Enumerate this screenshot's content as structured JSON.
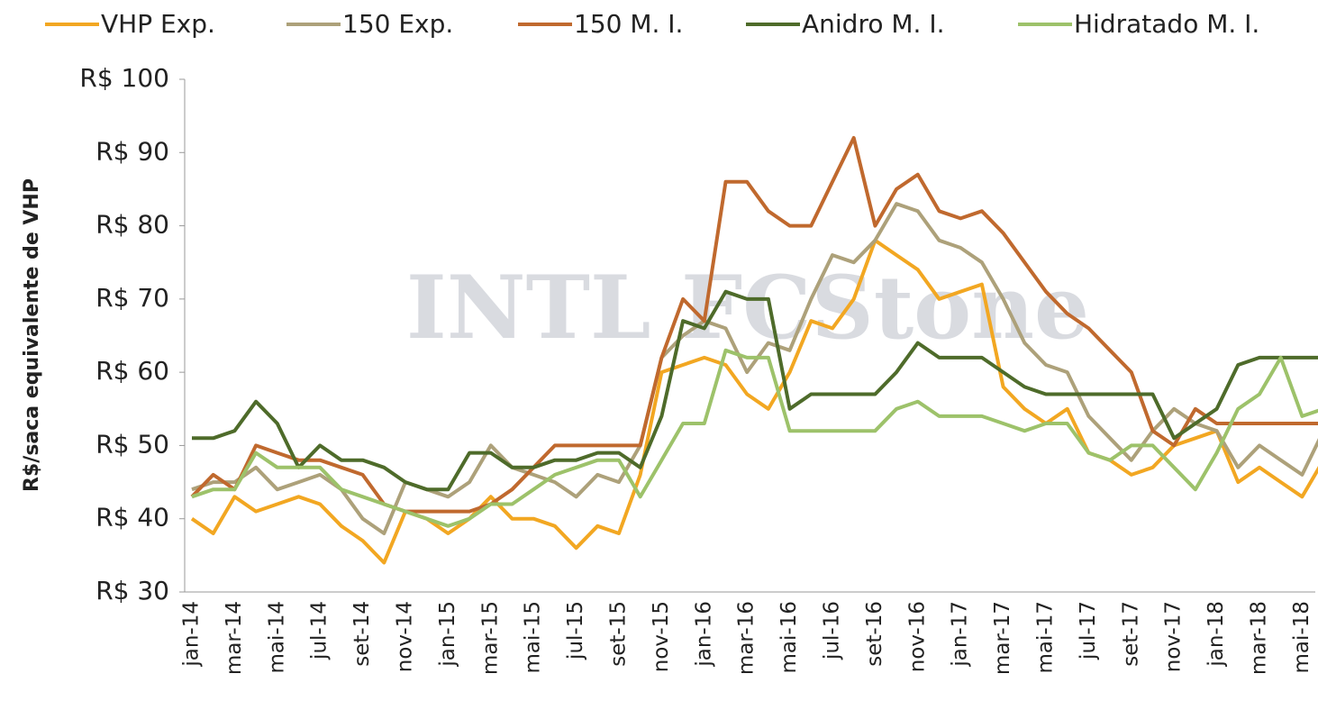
{
  "chart_data": {
    "type": "line",
    "watermark": "INTL FCStone",
    "y_label": "R$/saca equivalente de VHP",
    "categories": [
      "jan-14",
      null,
      "mar-14",
      null,
      "mai-14",
      null,
      "jul-14",
      null,
      "set-14",
      null,
      "nov-14",
      null,
      "jan-15",
      null,
      "mar-15",
      null,
      "mai-15",
      null,
      "jul-15",
      null,
      "set-15",
      null,
      "nov-15",
      null,
      "jan-16",
      null,
      "mar-16",
      null,
      "mai-16",
      null,
      "jul-16",
      null,
      "set-16",
      null,
      "nov-16",
      null,
      "jan-17",
      null,
      "mar-17",
      null,
      "mai-17",
      null,
      "jul-17",
      null,
      "set-17",
      null,
      "nov-17",
      null,
      "jan-18",
      null,
      "mar-18",
      null,
      "mai-18",
      null
    ],
    "series": [
      {
        "name": "VHP Exp.",
        "color": "#f2a722",
        "values": [
          40,
          38,
          43,
          41,
          42,
          43,
          42,
          39,
          37,
          34,
          41,
          40,
          38,
          40,
          43,
          40,
          40,
          39,
          36,
          39,
          38,
          46,
          60,
          61,
          62,
          61,
          57,
          55,
          60,
          67,
          66,
          70,
          78,
          76,
          74,
          70,
          71,
          72,
          58,
          55,
          53,
          55,
          49,
          48,
          46,
          47,
          50,
          51,
          52,
          45,
          47,
          45,
          43,
          48
        ]
      },
      {
        "name": "150 Exp.",
        "color": "#ada17a",
        "values": [
          44,
          45,
          45,
          47,
          44,
          45,
          46,
          44,
          40,
          38,
          45,
          44,
          43,
          45,
          50,
          47,
          46,
          45,
          43,
          46,
          45,
          50,
          62,
          65,
          67,
          66,
          60,
          64,
          63,
          70,
          76,
          75,
          78,
          83,
          82,
          78,
          77,
          75,
          70,
          64,
          61,
          60,
          54,
          51,
          48,
          52,
          55,
          53,
          52,
          47,
          50,
          48,
          46,
          52
        ]
      },
      {
        "name": "150 M. I.",
        "color": "#c0692e",
        "values": [
          43,
          46,
          44,
          50,
          49,
          48,
          48,
          47,
          46,
          42,
          41,
          41,
          41,
          41,
          42,
          44,
          47,
          50,
          50,
          50,
          50,
          50,
          62,
          70,
          67,
          86,
          86,
          82,
          80,
          80,
          86,
          92,
          80,
          85,
          87,
          82,
          81,
          82,
          79,
          75,
          71,
          68,
          66,
          63,
          60,
          52,
          50,
          55,
          53,
          53,
          53,
          53,
          53,
          53
        ]
      },
      {
        "name": "Anidro M. I.",
        "color": "#4e6b2a",
        "values": [
          51,
          51,
          52,
          56,
          53,
          47,
          50,
          48,
          48,
          47,
          45,
          44,
          44,
          49,
          49,
          47,
          47,
          48,
          48,
          49,
          49,
          47,
          54,
          67,
          66,
          71,
          70,
          70,
          55,
          57,
          57,
          57,
          57,
          60,
          64,
          62,
          62,
          62,
          60,
          58,
          57,
          57,
          57,
          57,
          57,
          57,
          51,
          53,
          55,
          61,
          62,
          62,
          62,
          62
        ]
      },
      {
        "name": "Hidratado M. I.",
        "color": "#9dc26a",
        "values": [
          43,
          44,
          44,
          49,
          47,
          47,
          47,
          44,
          43,
          42,
          41,
          40,
          39,
          40,
          42,
          42,
          44,
          46,
          47,
          48,
          48,
          43,
          48,
          53,
          53,
          63,
          62,
          62,
          52,
          52,
          52,
          52,
          52,
          55,
          56,
          54,
          54,
          54,
          53,
          52,
          53,
          53,
          49,
          48,
          50,
          50,
          47,
          44,
          49,
          55,
          57,
          62,
          54,
          55
        ]
      }
    ],
    "ylim": [
      30,
      100
    ],
    "yticks": [
      {
        "value": 30,
        "label": "R$ 30"
      },
      {
        "value": 40,
        "label": "R$ 40"
      },
      {
        "value": 50,
        "label": "R$ 50"
      },
      {
        "value": 60,
        "label": "R$ 60"
      },
      {
        "value": 70,
        "label": "R$ 70"
      },
      {
        "value": 80,
        "label": "R$ 80"
      },
      {
        "value": 90,
        "label": "R$ 90"
      },
      {
        "value": 100,
        "label": "R$ 100"
      }
    ],
    "grid": false,
    "legend": "top"
  }
}
